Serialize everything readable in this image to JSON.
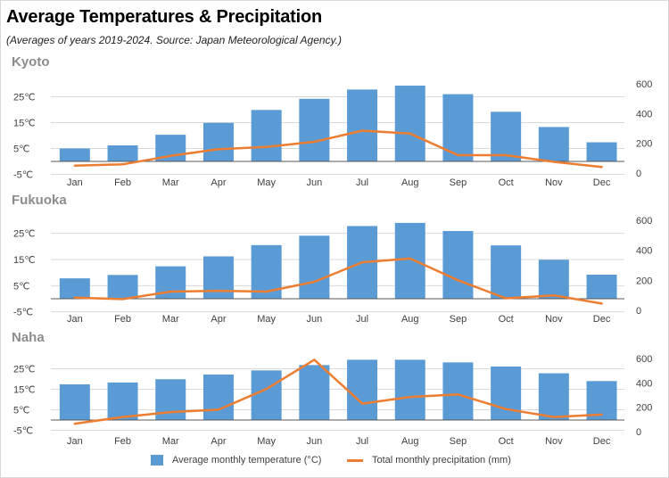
{
  "title": "Average Temperatures & Precipitation",
  "subtitle": "(Averages of years 2019-2024. Source: Japan Meteorological Agency.)",
  "colors": {
    "bar": "#5b9bd5",
    "line": "#ed7d31",
    "grid": "#d9d9d9",
    "axis": "#595959",
    "panel_title": "#8c8c8c"
  },
  "legend": {
    "temperature": "Average monthly temperature (°C)",
    "precipitation": "Total monthly precipitation (mm)"
  },
  "chart_data": [
    {
      "type": "bar",
      "title": "Kyoto",
      "categories": [
        "Jan",
        "Feb",
        "Mar",
        "Apr",
        "May",
        "Jun",
        "Jul",
        "Aug",
        "Sep",
        "Oct",
        "Nov",
        "Dec"
      ],
      "series": [
        {
          "name": "Average monthly temperature (°C)",
          "axis": "left",
          "values": [
            5.0,
            6.2,
            10.3,
            14.9,
            19.9,
            24.2,
            27.8,
            29.3,
            26.0,
            19.2,
            13.3,
            7.4
          ]
        },
        {
          "name": "Total monthly precipitation (mm)",
          "axis": "right",
          "type": "line",
          "values": [
            50,
            58,
            115,
            160,
            175,
            210,
            285,
            265,
            120,
            120,
            75,
            40
          ]
        }
      ],
      "yticks_left": [
        "-5℃",
        "5℃",
        "15℃",
        "25℃"
      ],
      "ylim_left": [
        -5,
        30
      ],
      "yticks_right": [
        "0",
        "200",
        "400",
        "600"
      ],
      "ylim_right": [
        0,
        600
      ],
      "grid": true
    },
    {
      "type": "bar",
      "title": "Fukuoka",
      "categories": [
        "Jan",
        "Feb",
        "Mar",
        "Apr",
        "May",
        "Jun",
        "Jul",
        "Aug",
        "Sep",
        "Oct",
        "Nov",
        "Dec"
      ],
      "series": [
        {
          "name": "Average monthly temperature (°C)",
          "axis": "left",
          "values": [
            7.8,
            9.1,
            12.4,
            16.2,
            20.5,
            24.1,
            27.8,
            29.0,
            25.9,
            20.4,
            14.9,
            9.2
          ]
        },
        {
          "name": "Total monthly precipitation (mm)",
          "axis": "right",
          "type": "line",
          "values": [
            85,
            75,
            125,
            130,
            125,
            190,
            320,
            345,
            200,
            80,
            100,
            45
          ]
        }
      ],
      "yticks_left": [
        "-5℃",
        "5℃",
        "15℃",
        "25℃"
      ],
      "ylim_left": [
        -5,
        30
      ],
      "yticks_right": [
        "0",
        "200",
        "400",
        "600"
      ],
      "ylim_right": [
        0,
        600
      ],
      "grid": true
    },
    {
      "type": "bar",
      "title": "Naha",
      "categories": [
        "Jan",
        "Feb",
        "Mar",
        "Apr",
        "May",
        "Jun",
        "Jul",
        "Aug",
        "Sep",
        "Oct",
        "Nov",
        "Dec"
      ],
      "series": [
        {
          "name": "Average monthly temperature (°C)",
          "axis": "left",
          "values": [
            17.4,
            18.3,
            19.9,
            22.2,
            24.2,
            26.8,
            29.4,
            29.4,
            28.1,
            26.1,
            22.8,
            19.0
          ]
        },
        {
          "name": "Total monthly precipitation (mm)",
          "axis": "right",
          "type": "line",
          "values": [
            65,
            120,
            160,
            180,
            350,
            590,
            230,
            285,
            305,
            185,
            120,
            140
          ]
        }
      ],
      "yticks_left": [
        "-5℃",
        "5℃",
        "15℃",
        "25℃"
      ],
      "ylim_left": [
        -5,
        30
      ],
      "yticks_right": [
        "0",
        "200",
        "400",
        "600"
      ],
      "ylim_right": [
        0,
        600
      ],
      "grid": true
    }
  ]
}
